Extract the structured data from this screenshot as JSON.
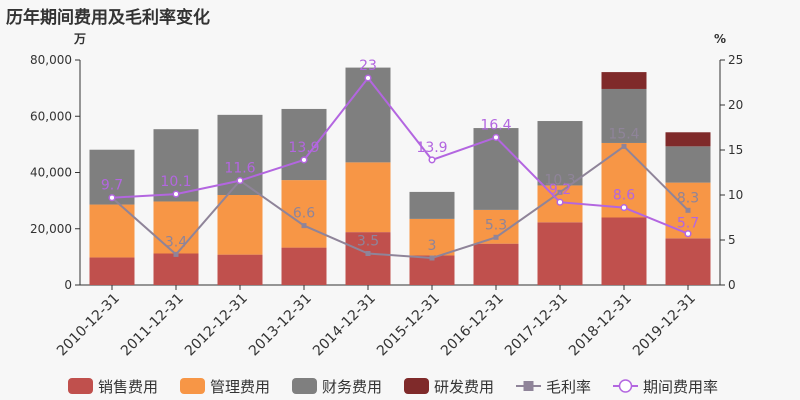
{
  "chart_data": {
    "type": "bar",
    "title": "历年期间费用及毛利率变化",
    "left_axis_unit": "万",
    "right_axis_unit": "%",
    "ylim_left": [
      0,
      80000
    ],
    "ylim_right": [
      0,
      25
    ],
    "left_ticks": [
      "0",
      "20,000",
      "40,000",
      "60,000",
      "80,000"
    ],
    "right_ticks": [
      "0",
      "5",
      "10",
      "15",
      "20",
      "25"
    ],
    "categories": [
      "2010-12-31",
      "2011-12-31",
      "2012-12-31",
      "2013-12-31",
      "2014-12-31",
      "2015-12-31",
      "2016-12-31",
      "2017-12-31",
      "2018-12-31",
      "2019-12-31"
    ],
    "stacked": true,
    "grid": false,
    "legend_position": "bottom",
    "bar_series": [
      {
        "name": "销售费用",
        "color": "#c0504d",
        "values": [
          9800,
          11200,
          10800,
          13300,
          18800,
          10500,
          14700,
          22300,
          24000,
          16600
        ]
      },
      {
        "name": "管理费用",
        "color": "#f79646",
        "values": [
          18800,
          18500,
          21200,
          24000,
          24800,
          13000,
          12000,
          13100,
          26500,
          19800
        ]
      },
      {
        "name": "财务费用",
        "color": "#7f7f7f",
        "values": [
          19500,
          25700,
          28500,
          25300,
          33700,
          9600,
          29100,
          22900,
          19200,
          12900
        ]
      },
      {
        "name": "研发费用",
        "color": "#7f2a2a",
        "values": [
          0,
          0,
          0,
          0,
          0,
          0,
          0,
          0,
          6000,
          5000
        ]
      }
    ],
    "line_series": [
      {
        "name": "毛利率",
        "color": "#8f8499",
        "marker": "square",
        "values": [
          9.7,
          3.4,
          11.6,
          6.6,
          3.5,
          3.0,
          5.3,
          10.3,
          15.4,
          8.3
        ],
        "labels": [
          "",
          "3.4",
          "",
          "6.6",
          "3.5",
          "3",
          "5.3",
          "10.3",
          "15.4",
          "8.3"
        ]
      },
      {
        "name": "期间费用率",
        "color": "#b366e0",
        "marker": "circle",
        "values": [
          9.7,
          10.1,
          11.6,
          13.9,
          23.0,
          13.9,
          16.4,
          9.2,
          8.6,
          5.7
        ],
        "labels": [
          "9.7",
          "10.1",
          "11.6",
          "13.9",
          "23",
          "13.9",
          "16.4",
          "9.2",
          "8.6",
          "5.7"
        ]
      }
    ]
  }
}
